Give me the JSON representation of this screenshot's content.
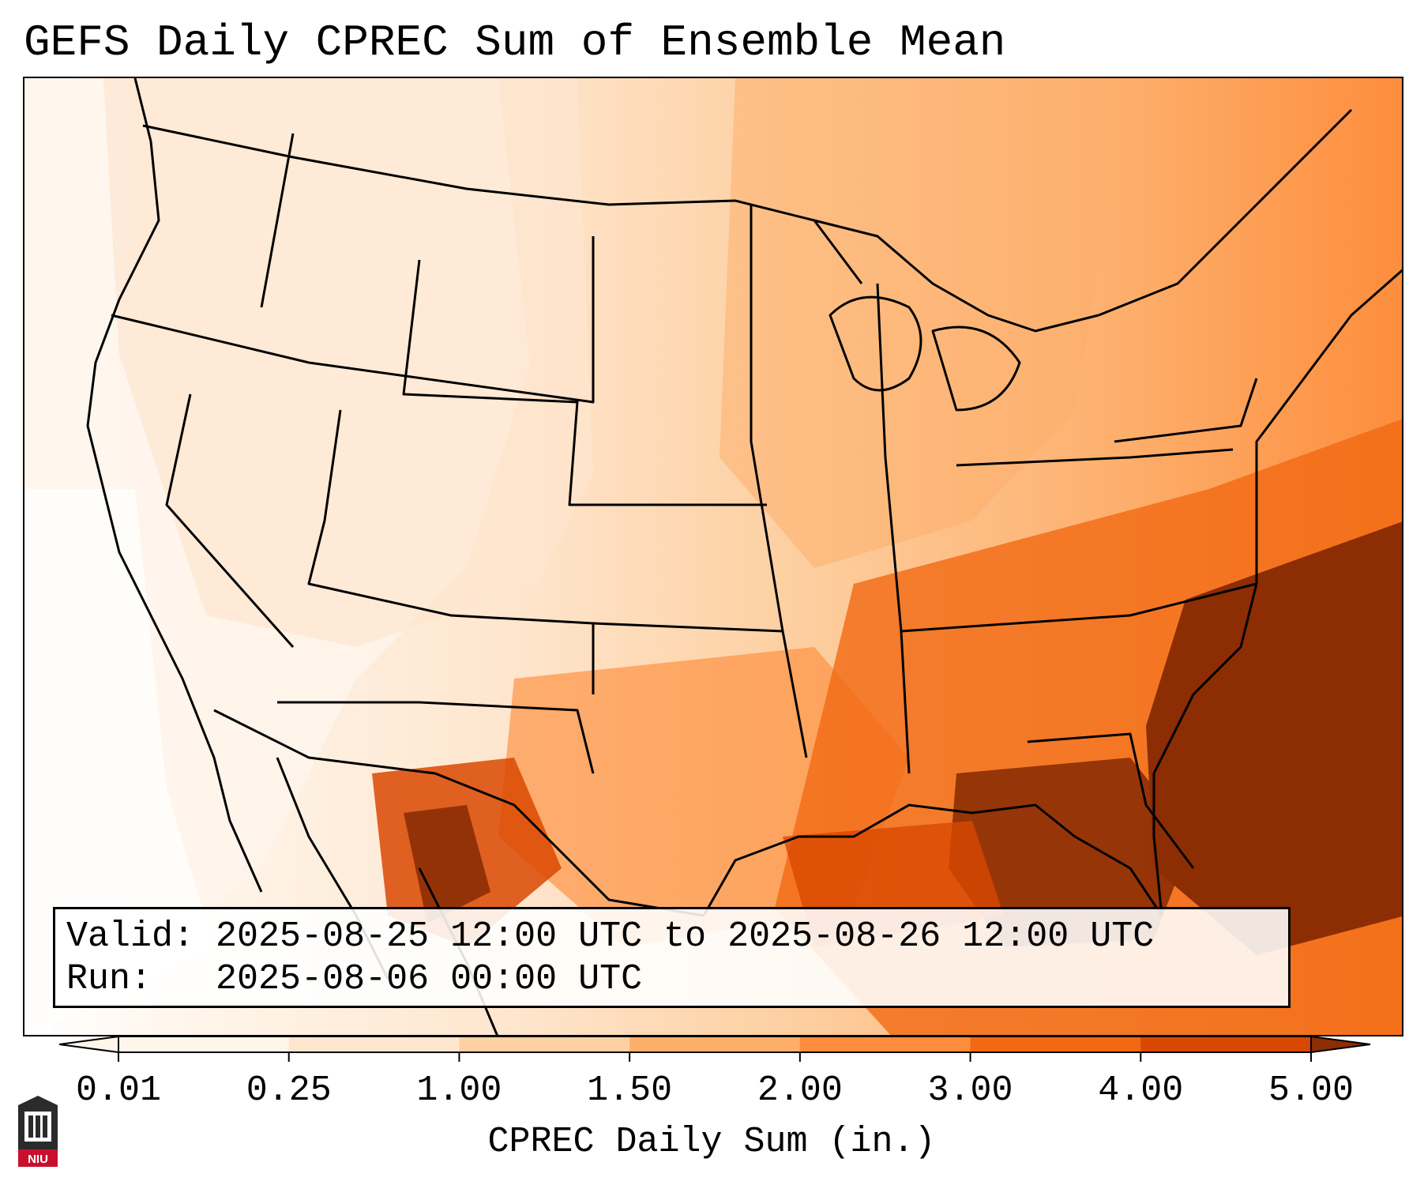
{
  "title": "GEFS Daily CPREC Sum of Ensemble Mean",
  "info": {
    "valid_label": "Valid:",
    "valid_value": "2025-08-25 12:00 UTC to 2025-08-26 12:00 UTC",
    "run_label": "Run:",
    "run_value": "2025-08-06 00:00 UTC"
  },
  "colorbar": {
    "label": "CPREC Daily Sum (in.)",
    "ticks": [
      "0.01",
      "0.25",
      "1.00",
      "1.50",
      "2.00",
      "3.00",
      "4.00",
      "5.00"
    ],
    "colors": [
      "#fff5eb",
      "#fee6ce",
      "#fdd0a2",
      "#fdae6b",
      "#fd8d3c",
      "#f16913",
      "#d94801",
      "#8c2d04"
    ],
    "extend": "both"
  },
  "logo": {
    "text": "NIU",
    "colors": {
      "red": "#c8102e",
      "dark": "#2b2b2b"
    }
  },
  "icons": [
    "niu-logo-icon"
  ]
}
